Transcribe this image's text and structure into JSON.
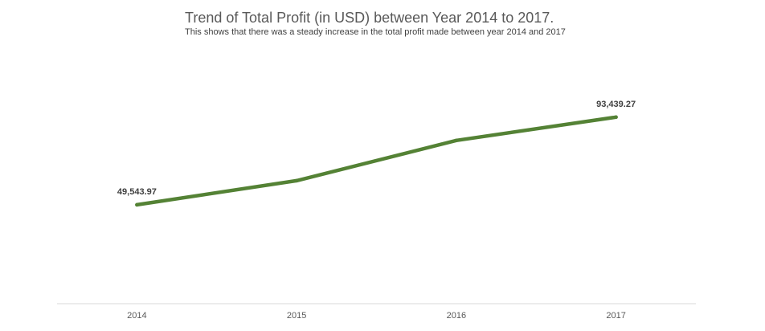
{
  "chart_data": {
    "type": "line",
    "title": "Trend of Total Profit (in USD) between Year 2014 to 2017.",
    "subtitle": "This shows that there was a steady increase in the total profit made between year 2014 and 2017",
    "categories": [
      "2014",
      "2015",
      "2016",
      "2017"
    ],
    "series": [
      {
        "values": [
          49543.97,
          61618.6,
          81795.17,
          93439.27
        ],
        "color": "#548235"
      }
    ],
    "data_labels": [
      {
        "index": 0,
        "text": "49,543.97"
      },
      {
        "index": 3,
        "text": "93,439.27"
      }
    ],
    "ylim": [
      0,
      130000
    ],
    "grid": false,
    "y_axis_visible": false,
    "legend": "none"
  }
}
